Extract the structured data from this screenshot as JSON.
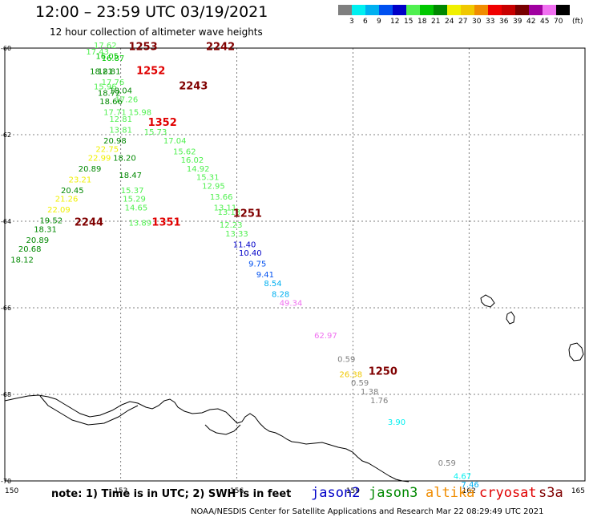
{
  "header": {
    "title": "12:00 – 23:59 UTC 03/19/2021",
    "subtitle": "12 hour collection of altimeter wave heights"
  },
  "colorbar": {
    "unit": "(ft)",
    "bins": [
      {
        "label": "",
        "color": "#7f7f7f"
      },
      {
        "label": "3",
        "color": "#00f0f0"
      },
      {
        "label": "6",
        "color": "#00b0f0"
      },
      {
        "label": "9",
        "color": "#0050f0"
      },
      {
        "label": "12",
        "color": "#0000c8"
      },
      {
        "label": "15",
        "color": "#50f050"
      },
      {
        "label": "18",
        "color": "#00c800"
      },
      {
        "label": "21",
        "color": "#008800"
      },
      {
        "label": "24",
        "color": "#f0f000"
      },
      {
        "label": "27",
        "color": "#f0c800"
      },
      {
        "label": "30",
        "color": "#f08c00"
      },
      {
        "label": "33",
        "color": "#f00000"
      },
      {
        "label": "36",
        "color": "#c80000"
      },
      {
        "label": "39",
        "color": "#780000"
      },
      {
        "label": "42",
        "color": "#a000a0"
      },
      {
        "label": "45",
        "color": "#f070f0"
      },
      {
        "label": "70",
        "color": "#000000"
      }
    ]
  },
  "map": {
    "lon_range": [
      150,
      165
    ],
    "lat_range": [
      -70,
      -60
    ],
    "lon_ticks": [
      "150",
      "153",
      "156",
      "159",
      "162",
      "165"
    ],
    "lat_ticks": [
      "-60",
      "-62",
      "-64",
      "-66",
      "-68",
      "-70"
    ],
    "grid": true
  },
  "colors": {
    "jason2": "#0000c8",
    "jason3": "#008800",
    "altika": "#f08c00",
    "cryosat": "#e00000",
    "s3a": "#800000"
  },
  "passes": [
    {
      "label": "1253",
      "sat": "s3a",
      "lon": 153.2,
      "lat": -60.05
    },
    {
      "label": "2242",
      "sat": "s3a",
      "lon": 155.2,
      "lat": -60.05
    },
    {
      "label": "1252",
      "sat": "cryosat",
      "lon": 153.4,
      "lat": -60.6
    },
    {
      "label": "2243",
      "sat": "s3a",
      "lon": 154.5,
      "lat": -60.95
    },
    {
      "label": "1352",
      "sat": "cryosat",
      "lon": 153.7,
      "lat": -61.8
    },
    {
      "label": "1251",
      "sat": "s3a",
      "lon": 155.9,
      "lat": -63.9
    },
    {
      "label": "2244",
      "sat": "s3a",
      "lon": 151.8,
      "lat": -64.1
    },
    {
      "label": "1351",
      "sat": "cryosat",
      "lon": 153.8,
      "lat": -64.1
    },
    {
      "label": "1250",
      "sat": "s3a",
      "lon": 159.4,
      "lat": -67.55
    }
  ],
  "observations": [
    {
      "value": "17.62",
      "lon": 152.3,
      "lat": -60.0,
      "color": "#50f050"
    },
    {
      "value": "17.43",
      "lon": 152.1,
      "lat": -60.15,
      "color": "#50f050"
    },
    {
      "value": "16.05",
      "lon": 152.35,
      "lat": -60.25,
      "color": "#00c800"
    },
    {
      "value": "16.87",
      "lon": 152.5,
      "lat": -60.3,
      "color": "#00c800"
    },
    {
      "value": "18.21",
      "lon": 152.2,
      "lat": -60.6,
      "color": "#008800"
    },
    {
      "value": "18.81",
      "lon": 152.4,
      "lat": -60.6,
      "color": "#008800"
    },
    {
      "value": "17.76",
      "lon": 152.5,
      "lat": -60.85,
      "color": "#50f050"
    },
    {
      "value": "15.96",
      "lon": 152.3,
      "lat": -60.95,
      "color": "#50f050"
    },
    {
      "value": "18.04",
      "lon": 152.7,
      "lat": -61.05,
      "color": "#008800"
    },
    {
      "value": "18.72",
      "lon": 152.4,
      "lat": -61.1,
      "color": "#008800"
    },
    {
      "value": "17.26",
      "lon": 152.85,
      "lat": -61.25,
      "color": "#50f050"
    },
    {
      "value": "18.66",
      "lon": 152.45,
      "lat": -61.3,
      "color": "#008800"
    },
    {
      "value": "17.71",
      "lon": 152.55,
      "lat": -61.55,
      "color": "#50f050"
    },
    {
      "value": "12.81",
      "lon": 152.7,
      "lat": -61.7,
      "color": "#50f050"
    },
    {
      "value": "15.98",
      "lon": 153.2,
      "lat": -61.55,
      "color": "#50f050"
    },
    {
      "value": "15.73",
      "lon": 153.6,
      "lat": -62.0,
      "color": "#50f050"
    },
    {
      "value": "13.81",
      "lon": 152.7,
      "lat": -61.95,
      "color": "#50f050"
    },
    {
      "value": "20.98",
      "lon": 152.55,
      "lat": -62.2,
      "color": "#008800"
    },
    {
      "value": "17.04",
      "lon": 154.1,
      "lat": -62.2,
      "color": "#50f050"
    },
    {
      "value": "22.75",
      "lon": 152.35,
      "lat": -62.4,
      "color": "#f0f000"
    },
    {
      "value": "15.62",
      "lon": 154.35,
      "lat": -62.45,
      "color": "#50f050"
    },
    {
      "value": "22.99",
      "lon": 152.15,
      "lat": -62.6,
      "color": "#f0f000"
    },
    {
      "value": "18.20",
      "lon": 152.8,
      "lat": -62.6,
      "color": "#008800"
    },
    {
      "value": "16.02",
      "lon": 154.55,
      "lat": -62.65,
      "color": "#50f050"
    },
    {
      "value": "20.89",
      "lon": 151.9,
      "lat": -62.85,
      "color": "#008800"
    },
    {
      "value": "14.92",
      "lon": 154.7,
      "lat": -62.85,
      "color": "#50f050"
    },
    {
      "value": "18.47",
      "lon": 152.95,
      "lat": -63.0,
      "color": "#008800"
    },
    {
      "value": "23.21",
      "lon": 151.65,
      "lat": -63.1,
      "color": "#f0f000"
    },
    {
      "value": "15.31",
      "lon": 154.95,
      "lat": -63.05,
      "color": "#50f050"
    },
    {
      "value": "20.45",
      "lon": 151.45,
      "lat": -63.35,
      "color": "#008800"
    },
    {
      "value": "15.37",
      "lon": 153.0,
      "lat": -63.35,
      "color": "#50f050"
    },
    {
      "value": "12.95",
      "lon": 155.1,
      "lat": -63.25,
      "color": "#50f050"
    },
    {
      "value": "21.26",
      "lon": 151.3,
      "lat": -63.55,
      "color": "#f0f000"
    },
    {
      "value": "15.29",
      "lon": 153.05,
      "lat": -63.55,
      "color": "#50f050"
    },
    {
      "value": "13.66",
      "lon": 155.3,
      "lat": -63.5,
      "color": "#50f050"
    },
    {
      "value": "22.09",
      "lon": 151.1,
      "lat": -63.8,
      "color": "#f0f000"
    },
    {
      "value": "14.65",
      "lon": 153.1,
      "lat": -63.75,
      "color": "#50f050"
    },
    {
      "value": "13.11",
      "lon": 155.4,
      "lat": -63.75,
      "color": "#50f050"
    },
    {
      "value": "19.52",
      "lon": 150.9,
      "lat": -64.05,
      "color": "#008800"
    },
    {
      "value": "13.13",
      "lon": 155.5,
      "lat": -63.85,
      "color": "#50f050"
    },
    {
      "value": "12.23",
      "lon": 155.55,
      "lat": -64.15,
      "color": "#50f050"
    },
    {
      "value": "13.89",
      "lon": 153.2,
      "lat": -64.1,
      "color": "#50f050"
    },
    {
      "value": "18.31",
      "lon": 150.75,
      "lat": -64.25,
      "color": "#008800"
    },
    {
      "value": "13.33",
      "lon": 155.7,
      "lat": -64.35,
      "color": "#50f050"
    },
    {
      "value": "20.89",
      "lon": 150.55,
      "lat": -64.5,
      "color": "#008800"
    },
    {
      "value": "11.40",
      "lon": 155.9,
      "lat": -64.6,
      "color": "#0000c8"
    },
    {
      "value": "20.68",
      "lon": 150.35,
      "lat": -64.7,
      "color": "#008800"
    },
    {
      "value": "10.40",
      "lon": 156.05,
      "lat": -64.8,
      "color": "#0000c8"
    },
    {
      "value": "18.12",
      "lon": 150.15,
      "lat": -64.95,
      "color": "#008800"
    },
    {
      "value": "9.75",
      "lon": 156.3,
      "lat": -65.05,
      "color": "#0050f0"
    },
    {
      "value": "9.41",
      "lon": 156.5,
      "lat": -65.3,
      "color": "#0050f0"
    },
    {
      "value": "8.54",
      "lon": 156.7,
      "lat": -65.5,
      "color": "#00b0f0"
    },
    {
      "value": "8.28",
      "lon": 156.9,
      "lat": -65.75,
      "color": "#00b0f0"
    },
    {
      "value": "49.34",
      "lon": 157.1,
      "lat": -65.95,
      "color": "#f070f0"
    },
    {
      "value": "62.97",
      "lon": 158.0,
      "lat": -66.7,
      "color": "#f070f0"
    },
    {
      "value": "0.59",
      "lon": 158.6,
      "lat": -67.25,
      "color": "#7f7f7f"
    },
    {
      "value": "26.38",
      "lon": 158.65,
      "lat": -67.6,
      "color": "#f0c800"
    },
    {
      "value": "0.59",
      "lon": 158.95,
      "lat": -67.8,
      "color": "#7f7f7f"
    },
    {
      "value": "1.38",
      "lon": 159.2,
      "lat": -68.0,
      "color": "#7f7f7f"
    },
    {
      "value": "1.76",
      "lon": 159.45,
      "lat": -68.2,
      "color": "#7f7f7f"
    },
    {
      "value": "3.90",
      "lon": 159.9,
      "lat": -68.7,
      "color": "#00f0f0"
    },
    {
      "value": "0.59",
      "lon": 161.2,
      "lat": -69.65,
      "color": "#7f7f7f"
    },
    {
      "value": "4.67",
      "lon": 161.6,
      "lat": -69.95,
      "color": "#00f0f0"
    },
    {
      "value": "7.46",
      "lon": 161.8,
      "lat": -70.15,
      "color": "#00b0f0"
    }
  ],
  "footer": {
    "note": "note: 1) Time is in UTC; 2) SWH is in feet",
    "satellites": [
      {
        "name": "jason2",
        "color": "#0000c8"
      },
      {
        "name": "jason3",
        "color": "#008800"
      },
      {
        "name": "altika",
        "color": "#f08c00"
      },
      {
        "name": "cryosat",
        "color": "#e00000"
      },
      {
        "name": "s3a",
        "color": "#800000"
      }
    ],
    "credit": "NOAA/NESDIS Center for Satellite Applications and Research   Mar 22 08:29:49 UTC 2021"
  }
}
